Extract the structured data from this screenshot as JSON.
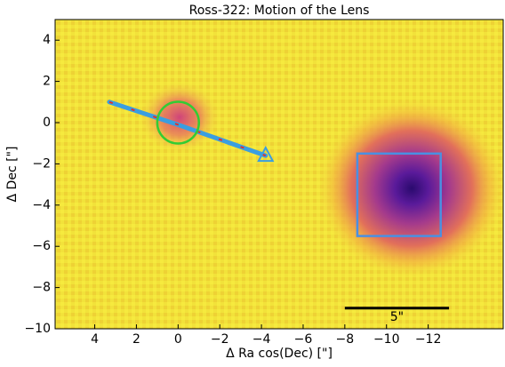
{
  "chart_data": {
    "type": "image",
    "title": "Ross-322: Motion of the Lens",
    "x_label": "Δ Ra cos(Dec) [\"]",
    "y_label": "Δ Dec [\"]",
    "xlim": [
      5.9,
      -15.6
    ],
    "ylim": [
      -10,
      5
    ],
    "xticks": [
      4,
      2,
      0,
      {
        "value": -2,
        "label": "−2"
      },
      {
        "value": -4,
        "label": "−4"
      },
      {
        "value": -6,
        "label": "−6"
      },
      {
        "value": -8,
        "label": "−8"
      },
      {
        "value": -10,
        "label": "−10"
      },
      {
        "value": -12,
        "label": "−12"
      }
    ],
    "yticks": [
      4,
      2,
      0,
      {
        "value": -2,
        "label": "−2"
      },
      {
        "value": -4,
        "label": "−4"
      },
      {
        "value": -6,
        "label": "−6"
      },
      {
        "value": -8,
        "label": "−8"
      },
      {
        "value": -10,
        "label": "−10"
      }
    ],
    "track": {
      "color": "#3a9ee0",
      "x": [
        3.3,
        0,
        -4.2
      ],
      "y": [
        1.0,
        -0.1,
        -1.6
      ]
    },
    "circle": {
      "color": "#33cc33",
      "x": 0,
      "y": 0,
      "r": 1
    },
    "triangle": {
      "color": "#3a9ee0",
      "x": -4.2,
      "y": -1.6
    },
    "box": {
      "color": "#4a90e2",
      "x": [
        -8.6,
        -12.6
      ],
      "y": [
        -1.5,
        -5.5
      ]
    },
    "scale_bar": {
      "color": "#000000",
      "x": [
        -8,
        -13
      ],
      "y": -9,
      "label": "5\""
    }
  }
}
